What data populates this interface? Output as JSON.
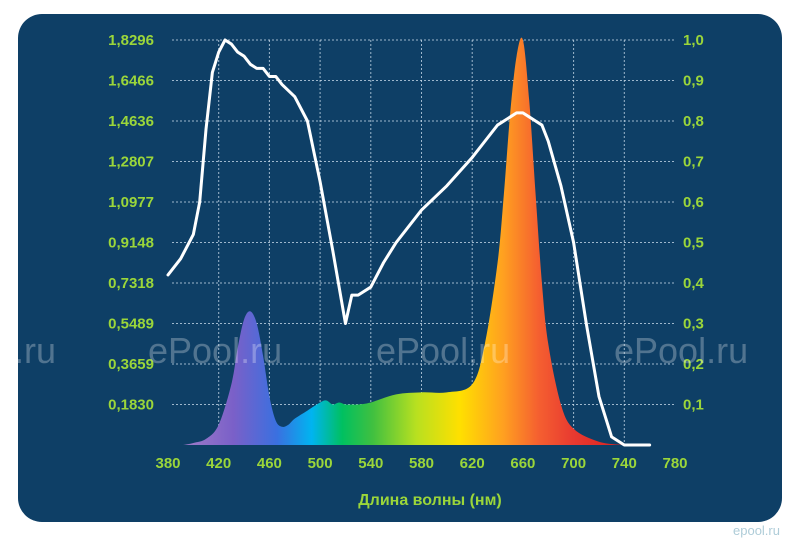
{
  "chart_data": {
    "type": "area",
    "xlabel": "Длина волны (нм)",
    "x_ticks": [
      "380",
      "420",
      "460",
      "500",
      "540",
      "580",
      "620",
      "660",
      "700",
      "740",
      "780"
    ],
    "xlim": [
      380,
      780
    ],
    "y_left_ticks": [
      "0,1830",
      "0,3659",
      "0,5489",
      "0,7318",
      "0,9148",
      "1,0977",
      "1,2807",
      "1,4636",
      "1,6466",
      "1,8296"
    ],
    "ylim_left": [
      0,
      1.8296
    ],
    "y_right_ticks": [
      "0,1",
      "0,2",
      "0,3",
      "0,4",
      "0,5",
      "0,6",
      "0,7",
      "0,8",
      "0,9",
      "1,0"
    ],
    "ylim_right": [
      0,
      1.0
    ],
    "grid": true,
    "series": [
      {
        "style": "filled spectrum area",
        "axis": "right",
        "x": [
          392,
          400,
          410,
          420,
          430,
          435,
          440,
          445,
          450,
          455,
          460,
          465,
          470,
          475,
          480,
          490,
          500,
          505,
          510,
          515,
          520,
          525,
          530,
          540,
          560,
          580,
          600,
          620,
          630,
          640,
          645,
          650,
          655,
          660,
          665,
          670,
          675,
          680,
          690,
          700,
          720,
          740
        ],
        "values": [
          0,
          0.005,
          0.015,
          0.05,
          0.15,
          0.24,
          0.31,
          0.33,
          0.3,
          0.22,
          0.12,
          0.06,
          0.045,
          0.05,
          0.065,
          0.085,
          0.105,
          0.11,
          0.1,
          0.105,
          0.1,
          0.1,
          0.1,
          0.105,
          0.125,
          0.13,
          0.13,
          0.15,
          0.25,
          0.45,
          0.62,
          0.82,
          0.96,
          1.0,
          0.85,
          0.62,
          0.4,
          0.25,
          0.1,
          0.04,
          0.008,
          0
        ]
      },
      {
        "style": "white line",
        "axis": "right",
        "x": [
          380,
          390,
          400,
          405,
          410,
          415,
          420,
          425,
          430,
          435,
          440,
          445,
          450,
          455,
          460,
          465,
          470,
          480,
          490,
          500,
          510,
          520,
          525,
          530,
          540,
          550,
          560,
          580,
          600,
          620,
          630,
          640,
          650,
          655,
          660,
          665,
          670,
          675,
          680,
          690,
          700,
          710,
          720,
          730,
          740,
          760
        ],
        "values": [
          0.42,
          0.46,
          0.52,
          0.6,
          0.78,
          0.92,
          0.97,
          1.0,
          0.99,
          0.97,
          0.96,
          0.94,
          0.93,
          0.93,
          0.91,
          0.91,
          0.89,
          0.86,
          0.8,
          0.65,
          0.48,
          0.3,
          0.37,
          0.37,
          0.39,
          0.45,
          0.5,
          0.58,
          0.64,
          0.71,
          0.75,
          0.79,
          0.81,
          0.82,
          0.82,
          0.81,
          0.8,
          0.79,
          0.75,
          0.64,
          0.5,
          0.3,
          0.12,
          0.02,
          0,
          0
        ]
      }
    ]
  },
  "watermark": {
    "texts": [
      "l.ru",
      "ePool.ru",
      "ePool.ru",
      "ePool.ru"
    ],
    "corner": "epool.ru"
  }
}
